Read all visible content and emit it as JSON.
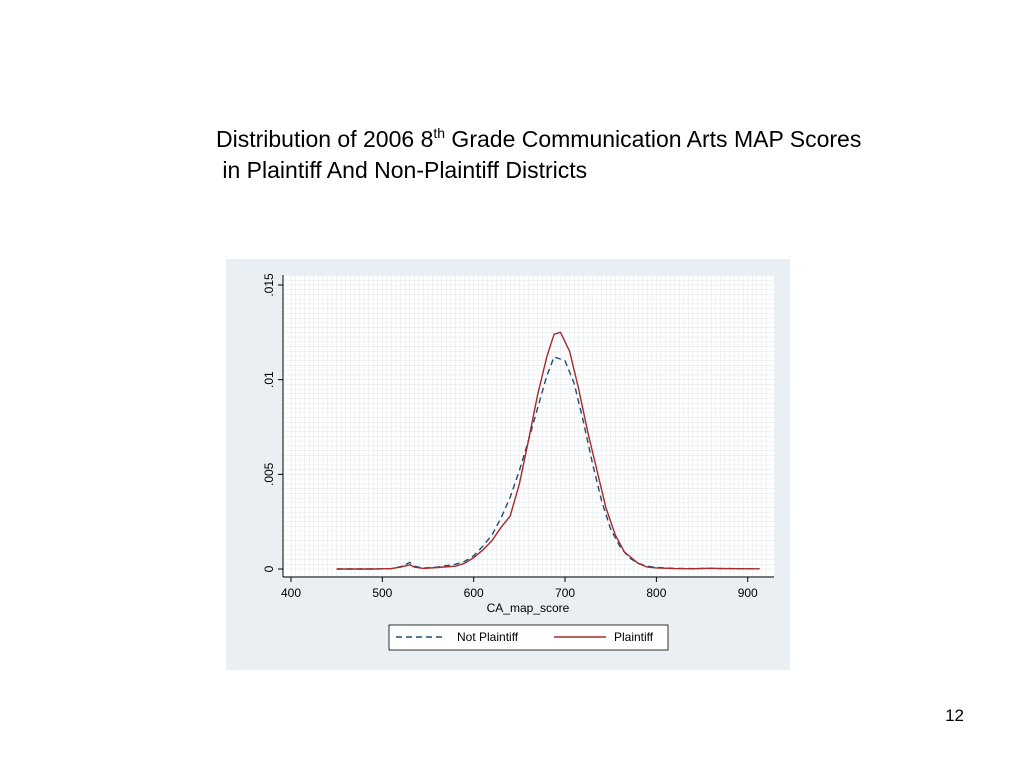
{
  "slide": {
    "title_line1_pre": "Distribution of 2006 8",
    "title_line1_sup": "th",
    "title_line1_post": " Grade Communication Arts MAP Scores",
    "title_line2": " in Plaintiff And Non-Plaintiff Districts",
    "page_number": "12"
  },
  "chart_data": {
    "type": "line",
    "title": "",
    "xlabel": "CA_map_score",
    "ylabel": "",
    "xlim": [
      400,
      920
    ],
    "ylim": [
      0,
      0.015
    ],
    "x_ticks": [
      400,
      500,
      600,
      700,
      800,
      900
    ],
    "x_tick_labels": [
      "400",
      "500",
      "600",
      "700",
      "800",
      "900"
    ],
    "y_ticks": [
      0,
      0.005,
      0.01,
      0.015
    ],
    "y_tick_labels": [
      "0",
      ".005",
      ".01",
      ".015"
    ],
    "grid": true,
    "legend_position": "bottom",
    "series": [
      {
        "name": "Not Plaintiff",
        "color": "#1f4e79",
        "dash": "dashed",
        "x": [
          450,
          470,
          490,
          510,
          520,
          530,
          535,
          545,
          560,
          580,
          590,
          600,
          610,
          620,
          630,
          640,
          650,
          660,
          670,
          680,
          688,
          700,
          710,
          720,
          730,
          740,
          750,
          760,
          770,
          780,
          790,
          800,
          820,
          840,
          860,
          870,
          880,
          900,
          913
        ],
        "y": [
          0.0,
          0.0,
          0.0,
          2e-05,
          0.00012,
          0.00035,
          0.00015,
          5e-05,
          0.0001,
          0.00025,
          0.0004,
          0.0007,
          0.0012,
          0.0018,
          0.0027,
          0.0038,
          0.0052,
          0.0068,
          0.0085,
          0.0102,
          0.0112,
          0.011,
          0.0098,
          0.0078,
          0.0056,
          0.0036,
          0.0021,
          0.0012,
          0.0006,
          0.0003,
          0.00015,
          8e-05,
          3e-05,
          2e-05,
          3e-05,
          2e-05,
          2e-05,
          1e-05,
          1e-05
        ]
      },
      {
        "name": "Plaintiff",
        "color": "#a52a2a",
        "dash": "solid",
        "x": [
          450,
          470,
          490,
          510,
          520,
          530,
          535,
          545,
          560,
          580,
          590,
          600,
          610,
          620,
          630,
          640,
          650,
          660,
          670,
          680,
          688,
          695,
          705,
          715,
          725,
          735,
          745,
          755,
          765,
          780,
          790,
          800,
          820,
          840,
          860,
          870,
          880,
          900,
          913
        ],
        "y": [
          0.0,
          0.0,
          0.0,
          2e-05,
          0.0001,
          0.00022,
          0.0001,
          3e-05,
          8e-05,
          0.00015,
          0.0003,
          0.0006,
          0.001,
          0.0015,
          0.0022,
          0.0028,
          0.0045,
          0.0068,
          0.0092,
          0.0112,
          0.0124,
          0.0125,
          0.0115,
          0.0095,
          0.0072,
          0.0052,
          0.0032,
          0.0018,
          0.0009,
          0.0003,
          0.0001,
          6e-05,
          2e-05,
          1e-05,
          4e-05,
          2e-05,
          2e-05,
          1e-05,
          1e-05
        ]
      }
    ]
  }
}
